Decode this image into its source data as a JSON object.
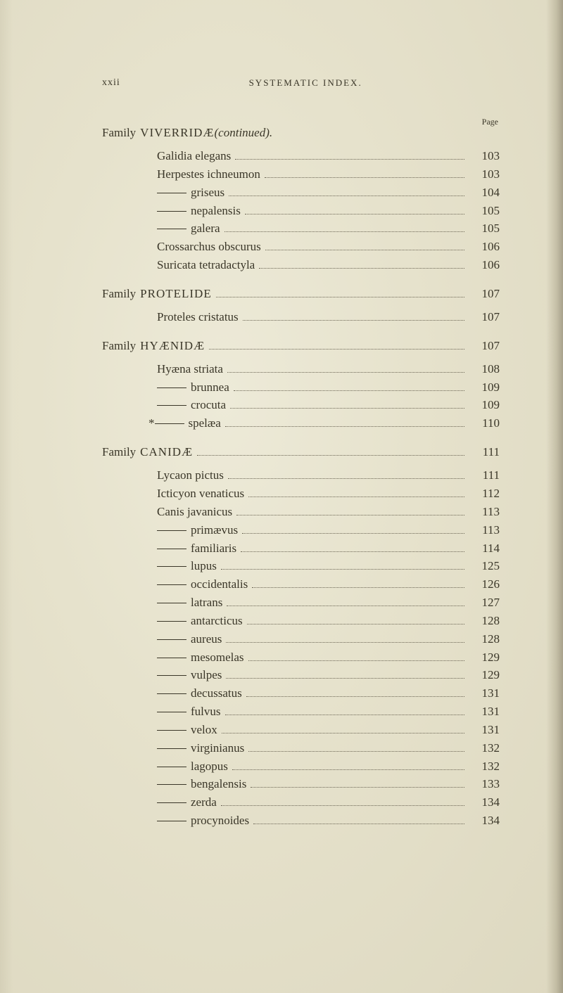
{
  "header": {
    "roman": "xxii",
    "running": "SYSTEMATIC INDEX.",
    "page_label": "Page"
  },
  "sections": [
    {
      "family_label": "Family",
      "family_name": "VIVERRIDÆ",
      "continued": "(continued).",
      "family_page": "",
      "show_page_header": true,
      "entries": [
        {
          "text": "Galidia elegans",
          "page": "103",
          "dash": false
        },
        {
          "text": "Herpestes ichneumon",
          "page": "103",
          "dash": false
        },
        {
          "text": "griseus",
          "page": "104",
          "dash": true
        },
        {
          "text": "nepalensis",
          "page": "105",
          "dash": true
        },
        {
          "text": "galera",
          "page": "105",
          "dash": true
        },
        {
          "text": "Crossarchus obscurus",
          "page": "106",
          "dash": false
        },
        {
          "text": "Suricata tetradactyla",
          "page": "106",
          "dash": false
        }
      ]
    },
    {
      "family_label": "Family",
      "family_name": "PROTELIDE",
      "continued": "",
      "family_page": "107",
      "show_page_header": false,
      "entries": [
        {
          "text": "Proteles cristatus",
          "page": "107",
          "dash": false
        }
      ]
    },
    {
      "family_label": "Family",
      "family_name": "HYÆNIDÆ",
      "continued": "",
      "family_page": "107",
      "show_page_header": false,
      "entries": [
        {
          "text": "Hyæna striata",
          "page": "108",
          "dash": false
        },
        {
          "text": "brunnea",
          "page": "109",
          "dash": true
        },
        {
          "text": "crocuta",
          "page": "109",
          "dash": true
        },
        {
          "text": "spelæa",
          "page": "110",
          "dash": true,
          "asterisk": true
        }
      ]
    },
    {
      "family_label": "Family",
      "family_name": "CANIDÆ",
      "continued": "",
      "family_page": "111",
      "show_page_header": false,
      "entries": [
        {
          "text": "Lycaon pictus",
          "page": "111",
          "dash": false
        },
        {
          "text": "Icticyon venaticus",
          "page": "112",
          "dash": false
        },
        {
          "text": "Canis javanicus",
          "page": "113",
          "dash": false
        },
        {
          "text": "primævus",
          "page": "113",
          "dash": true
        },
        {
          "text": "familiaris",
          "page": "114",
          "dash": true
        },
        {
          "text": "lupus",
          "page": "125",
          "dash": true
        },
        {
          "text": "occidentalis",
          "page": "126",
          "dash": true
        },
        {
          "text": "latrans",
          "page": "127",
          "dash": true
        },
        {
          "text": "antarcticus",
          "page": "128",
          "dash": true
        },
        {
          "text": "aureus",
          "page": "128",
          "dash": true
        },
        {
          "text": "mesomelas",
          "page": "129",
          "dash": true
        },
        {
          "text": "vulpes",
          "page": "129",
          "dash": true
        },
        {
          "text": "decussatus",
          "page": "131",
          "dash": true
        },
        {
          "text": "fulvus",
          "page": "131",
          "dash": true
        },
        {
          "text": "velox",
          "page": "131",
          "dash": true
        },
        {
          "text": "virginianus",
          "page": "132",
          "dash": true
        },
        {
          "text": "lagopus",
          "page": "132",
          "dash": true
        },
        {
          "text": "bengalensis",
          "page": "133",
          "dash": true
        },
        {
          "text": "zerda",
          "page": "134",
          "dash": true
        },
        {
          "text": "procynoides",
          "page": "134",
          "dash": true
        }
      ]
    }
  ]
}
